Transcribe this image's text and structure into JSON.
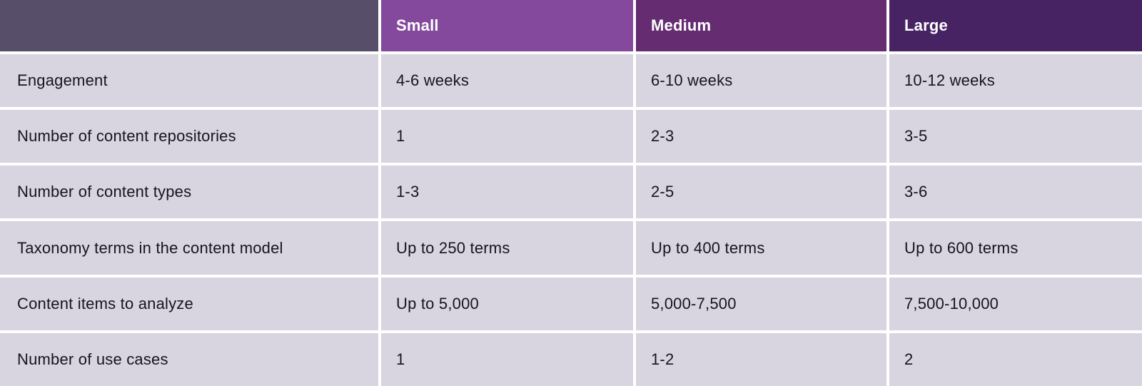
{
  "colors": {
    "header_label_bg": "#574e6a",
    "header_small_bg": "#84499c",
    "header_medium_bg": "#652c72",
    "header_large_bg": "#472364",
    "row_bg": "#d8d5e0",
    "grid_gap": "#ffffff",
    "header_text": "#ffffff",
    "body_text": "#17141f"
  },
  "table": {
    "columns": [
      {
        "label": ""
      },
      {
        "label": "Small"
      },
      {
        "label": "Medium"
      },
      {
        "label": "Large"
      }
    ],
    "rows": [
      {
        "label": "Engagement",
        "small": "4-6 weeks",
        "medium": "6-10 weeks",
        "large": "10-12 weeks"
      },
      {
        "label": "Number of content repositories",
        "small": "1",
        "medium": "2-3",
        "large": "3-5"
      },
      {
        "label": "Number of content types",
        "small": "1-3",
        "medium": "2-5",
        "large": "3-6"
      },
      {
        "label": "Taxonomy terms in the content model",
        "small": "Up to 250 terms",
        "medium": "Up to 400 terms",
        "large": "Up to 600 terms"
      },
      {
        "label": "Content items to analyze",
        "small": "Up to 5,000",
        "medium": "5,000-7,500",
        "large": "7,500-10,000"
      },
      {
        "label": "Number of use cases",
        "small": "1",
        "medium": "1-2",
        "large": "2"
      }
    ]
  },
  "chart_data": {
    "type": "table",
    "title": "",
    "columns": [
      "",
      "Small",
      "Medium",
      "Large"
    ],
    "rows": [
      [
        "Engagement",
        "4-6 weeks",
        "6-10 weeks",
        "10-12 weeks"
      ],
      [
        "Number of content repositories",
        "1",
        "2-3",
        "3-5"
      ],
      [
        "Number of content types",
        "1-3",
        "2-5",
        "3-6"
      ],
      [
        "Taxonomy terms in the content model",
        "Up to 250 terms",
        "Up to 400 terms",
        "Up to 600 terms"
      ],
      [
        "Content items to analyze",
        "Up to 5,000",
        "5,000-7,500",
        "7,500-10,000"
      ],
      [
        "Number of use cases",
        "1",
        "1-2",
        "2"
      ]
    ]
  }
}
